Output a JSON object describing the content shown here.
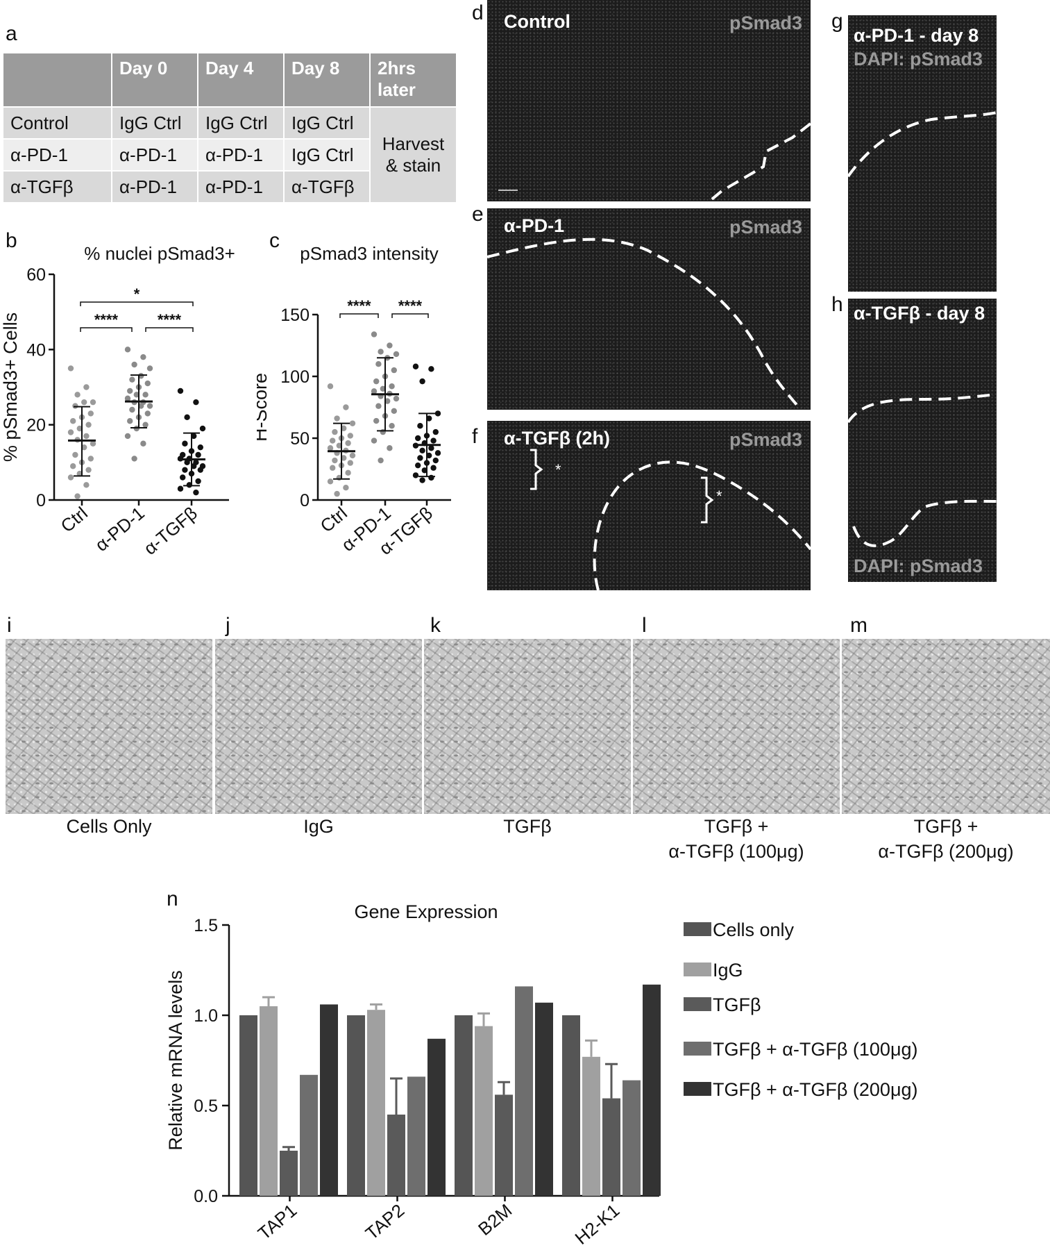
{
  "panel_letters": {
    "a": "a",
    "b": "b",
    "c": "c",
    "d": "d",
    "e": "e",
    "f": "f",
    "g": "g",
    "h": "h",
    "i": "i",
    "j": "j",
    "k": "k",
    "l": "l",
    "m": "m",
    "n": "n"
  },
  "table": {
    "headers": [
      "",
      "Day 0",
      "Day 4",
      "Day 8",
      "2hrs later"
    ],
    "rows": [
      [
        "Control",
        "IgG Ctrl",
        "IgG Ctrl",
        "IgG Ctrl"
      ],
      [
        "α-PD-1",
        "α-PD-1",
        "α-PD-1",
        "IgG Ctrl"
      ],
      [
        "α-TGFβ",
        "α-PD-1",
        "α-PD-1",
        "α-TGFβ"
      ]
    ],
    "merged_cell": "Harvest & stain"
  },
  "chart_data": [
    {
      "type": "scatter",
      "title": "% nuclei pSmad3+",
      "ylabel": "% pSmad3+ Cells",
      "xlabel": "",
      "categories": [
        "Ctrl",
        "α-PD-1",
        "α-TGFβ"
      ],
      "ylim": [
        0,
        60
      ],
      "yticks": [
        0,
        20,
        40,
        60
      ],
      "means": [
        15.8,
        26.2,
        10.8
      ],
      "sd_upper": [
        24.8,
        33.2,
        17.8
      ],
      "sd_lower": [
        6.4,
        19.2,
        3.8
      ],
      "series": [
        {
          "values": [
            35,
            30,
            28,
            26,
            26,
            25,
            23,
            22,
            21,
            20,
            19,
            18,
            17,
            16,
            15,
            14,
            12,
            11,
            10,
            9,
            8,
            7,
            6,
            4,
            1
          ]
        },
        {
          "values": [
            40,
            38,
            36,
            35,
            33,
            32,
            31,
            30,
            29,
            28,
            28,
            27,
            26,
            26,
            25,
            25,
            24,
            23,
            22,
            21,
            20,
            19,
            17,
            15,
            11
          ]
        },
        {
          "values": [
            29,
            26,
            22,
            19,
            17,
            15,
            14,
            13,
            12,
            12,
            11,
            11,
            10,
            10,
            9,
            9,
            8,
            8,
            7,
            6,
            5,
            4,
            3,
            2
          ]
        }
      ],
      "significance": [
        {
          "from": 0,
          "to": 2,
          "label": "*"
        },
        {
          "from": 0,
          "to": 1,
          "label": "****"
        },
        {
          "from": 1,
          "to": 2,
          "label": "****"
        }
      ]
    },
    {
      "type": "scatter",
      "title": "pSmad3 intensity",
      "ylabel": "H-Score",
      "xlabel": "",
      "categories": [
        "Ctrl",
        "α-PD-1",
        "α-TGFβ"
      ],
      "ylim": [
        0,
        150
      ],
      "yticks": [
        0,
        50,
        100,
        150
      ],
      "means": [
        39.5,
        85.5,
        44.5
      ],
      "sd_upper": [
        62,
        115,
        70
      ],
      "sd_lower": [
        17,
        56,
        19
      ],
      "series": [
        {
          "values": [
            92,
            75,
            66,
            62,
            58,
            55,
            52,
            50,
            48,
            46,
            44,
            42,
            40,
            38,
            36,
            34,
            32,
            30,
            28,
            26,
            22,
            18,
            15,
            10,
            5
          ]
        },
        {
          "values": [
            134,
            125,
            120,
            118,
            115,
            110,
            105,
            100,
            96,
            92,
            90,
            88,
            86,
            84,
            82,
            80,
            76,
            72,
            68,
            64,
            60,
            55,
            48,
            42,
            32
          ]
        },
        {
          "values": [
            108,
            106,
            96,
            70,
            66,
            60,
            55,
            52,
            50,
            48,
            46,
            44,
            42,
            40,
            38,
            36,
            34,
            32,
            30,
            28,
            26,
            24,
            20,
            18,
            16
          ]
        }
      ],
      "significance": [
        {
          "from": 0,
          "to": 1,
          "label": "****"
        },
        {
          "from": 1,
          "to": 2,
          "label": "****"
        }
      ]
    },
    {
      "type": "bar",
      "title": "Gene Expression",
      "ylabel": "Relative mRNA levels",
      "xlabel": "",
      "categories": [
        "TAP1",
        "TAP2",
        "B2M",
        "H2-K1"
      ],
      "ylim": [
        0,
        1.5
      ],
      "yticks": [
        "0.0",
        "0.5",
        "1.0",
        "1.5"
      ],
      "series": [
        {
          "name": "Cells only",
          "color": "#555555",
          "values": [
            1.0,
            1.0,
            1.0,
            1.0
          ],
          "err": [
            0,
            0,
            0,
            0
          ]
        },
        {
          "name": "IgG",
          "color": "#a0a0a0",
          "values": [
            1.05,
            1.03,
            0.94,
            0.77
          ],
          "err": [
            0.05,
            0.03,
            0.07,
            0.09
          ]
        },
        {
          "name": "TGFβ",
          "color": "#5a5a5a",
          "values": [
            0.25,
            0.45,
            0.56,
            0.54
          ],
          "err": [
            0.02,
            0.2,
            0.07,
            0.19
          ]
        },
        {
          "name": "TGFβ + α-TGFβ (100μg)",
          "color": "#6e6e6e",
          "values": [
            0.67,
            0.66,
            1.16,
            0.64
          ],
          "err": [
            0,
            0,
            0,
            0
          ]
        },
        {
          "name": "TGFβ + α-TGFβ (200μg)",
          "color": "#333333",
          "values": [
            1.06,
            0.87,
            1.07,
            1.17
          ],
          "err": [
            0,
            0,
            0,
            0
          ]
        }
      ]
    }
  ],
  "micrographs": {
    "d": {
      "left": "Control",
      "right": "pSmad3"
    },
    "e": {
      "left": "α-PD-1",
      "right": "pSmad3"
    },
    "f": {
      "left": "α-TGFβ (2h)",
      "right": "pSmad3",
      "marks": [
        "*",
        "*"
      ]
    },
    "g": {
      "line1": "α-PD-1 - day 8",
      "line2": "DAPI: pSmad3"
    },
    "h": {
      "line1": "α-TGFβ - day 8",
      "line2": "DAPI: pSmad3"
    }
  },
  "brightfield": {
    "i": "Cells Only",
    "j": "IgG",
    "k": "TGFβ",
    "l": [
      "TGFβ +",
      "α-TGFβ (100μg)"
    ],
    "m": [
      "TGFβ +",
      "α-TGFβ (200μg)"
    ]
  }
}
